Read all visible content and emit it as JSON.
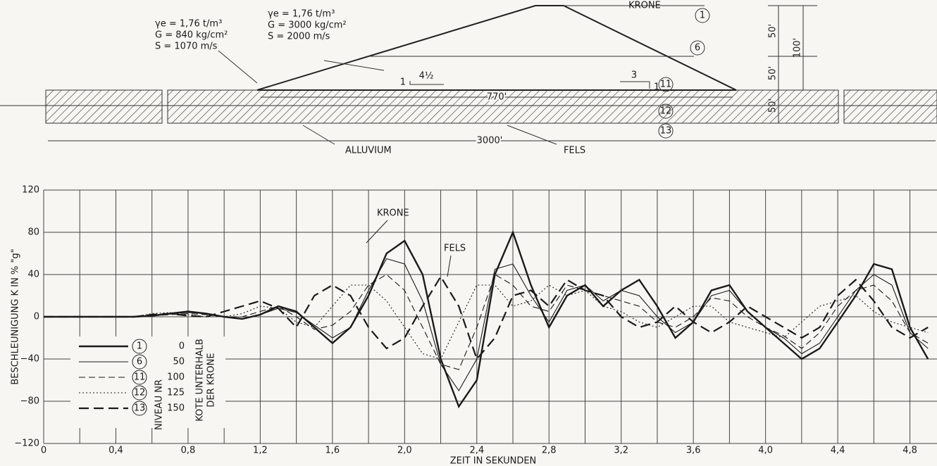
{
  "diagram": {
    "upper_left_props": [
      "γe = 1,76 t/m³",
      "G = 840 kg/cm²",
      "S = 1070 m/s"
    ],
    "upper_mid_props": [
      "γe = 1,76 t/m³",
      "G = 3000 kg/cm²",
      "S = 2000 m/s"
    ],
    "crest_label": "KRONE",
    "slope_left": [
      "1",
      "4½"
    ],
    "slope_right": [
      "3",
      "1"
    ],
    "level_markers": [
      "1",
      "6",
      "11",
      "12",
      "13"
    ],
    "dims": [
      "50'",
      "50'",
      "100'",
      "50'",
      "770'",
      "3000'"
    ],
    "layers": [
      "ALLUVIUM",
      "FELS"
    ]
  },
  "chart_data": {
    "type": "line",
    "ylabel": "BESCHLEUNIGUNG K IN % \"g\"",
    "xlabel": "ZEIT IN SEKUNDEN",
    "annotations": [
      "KRONE",
      "FELS"
    ],
    "legend_title": [
      "NIVEAU NR",
      "KOTE UNTERHALB",
      "DER KRONE"
    ],
    "xlim": [
      0,
      4.95
    ],
    "ylim": [
      -120,
      120
    ],
    "xticks": [
      {
        "value": 0,
        "label": "0"
      },
      {
        "value": 0.4,
        "label": "0,4"
      },
      {
        "value": 0.8,
        "label": "0,8"
      },
      {
        "value": 1.2,
        "label": "1,2"
      },
      {
        "value": 1.6,
        "label": "1,6"
      },
      {
        "value": 2.0,
        "label": "2,0"
      },
      {
        "value": 2.4,
        "label": "2,4"
      },
      {
        "value": 2.8,
        "label": "2,8"
      },
      {
        "value": 3.2,
        "label": "3,2"
      },
      {
        "value": 3.6,
        "label": "3,6"
      },
      {
        "value": 4.0,
        "label": "4,0"
      },
      {
        "value": 4.4,
        "label": "4,4"
      },
      {
        "value": 4.8,
        "label": "4,8"
      }
    ],
    "xgrid": [
      0.2,
      0.6,
      1.0,
      1.4,
      1.8,
      2.2,
      2.6,
      3.0,
      3.4,
      3.8,
      4.2,
      4.6
    ],
    "yticks": [
      {
        "value": -120,
        "label": "−120"
      },
      {
        "value": -80,
        "label": "−80"
      },
      {
        "value": -40,
        "label": "−40"
      },
      0,
      40,
      80,
      120
    ],
    "grid": true,
    "x": [
      0,
      0.1,
      0.2,
      0.3,
      0.4,
      0.5,
      0.6,
      0.7,
      0.8,
      0.9,
      1.0,
      1.1,
      1.2,
      1.3,
      1.4,
      1.5,
      1.6,
      1.7,
      1.8,
      1.9,
      2.0,
      2.1,
      2.2,
      2.3,
      2.4,
      2.5,
      2.6,
      2.7,
      2.8,
      2.9,
      3.0,
      3.1,
      3.2,
      3.3,
      3.4,
      3.5,
      3.6,
      3.7,
      3.8,
      3.9,
      4.0,
      4.1,
      4.2,
      4.3,
      4.4,
      4.5,
      4.6,
      4.7,
      4.8,
      4.9
    ],
    "series": [
      {
        "name": "1",
        "depth": "0",
        "color": "#1a1a1a",
        "width": 2.4,
        "dash": "solid",
        "values": [
          0,
          0,
          0,
          0,
          0,
          0,
          1,
          3,
          5,
          3,
          0,
          -2,
          2,
          10,
          5,
          -10,
          -25,
          -10,
          20,
          60,
          72,
          40,
          -40,
          -85,
          -60,
          40,
          80,
          30,
          -10,
          20,
          30,
          10,
          25,
          35,
          10,
          -20,
          -5,
          25,
          30,
          5,
          -10,
          -25,
          -40,
          -30,
          -5,
          20,
          50,
          45,
          -10,
          -40
        ]
      },
      {
        "name": "6",
        "depth": "50",
        "color": "#1a1a1a",
        "width": 1.1,
        "dash": "solid",
        "values": [
          0,
          0,
          0,
          0,
          0,
          0,
          1,
          3,
          4,
          3,
          0,
          -2,
          2,
          8,
          4,
          -8,
          -20,
          -10,
          25,
          55,
          50,
          15,
          -45,
          -70,
          -40,
          45,
          50,
          20,
          -5,
          25,
          30,
          15,
          25,
          20,
          0,
          -15,
          -5,
          20,
          25,
          5,
          -10,
          -20,
          -35,
          -25,
          0,
          25,
          40,
          30,
          -15,
          -30
        ]
      },
      {
        "name": "11",
        "depth": "100",
        "color": "#1a1a1a",
        "width": 1.1,
        "dash": "dashed",
        "values": [
          0,
          0,
          0,
          0,
          0,
          0,
          1,
          2,
          3,
          2,
          0,
          0,
          5,
          10,
          0,
          -12,
          -8,
          5,
          30,
          40,
          25,
          -10,
          -45,
          -50,
          -10,
          40,
          30,
          10,
          5,
          30,
          25,
          20,
          15,
          10,
          -5,
          -10,
          0,
          18,
          15,
          0,
          -10,
          -18,
          -30,
          -15,
          10,
          25,
          30,
          15,
          -15,
          -25
        ]
      },
      {
        "name": "12",
        "depth": "125",
        "color": "#1a1a1a",
        "width": 1.1,
        "dash": "dotted",
        "values": [
          0,
          0,
          0,
          0,
          0,
          0,
          3,
          4,
          2,
          0,
          0,
          3,
          10,
          8,
          -5,
          -10,
          10,
          30,
          30,
          15,
          -10,
          -35,
          -40,
          -5,
          30,
          30,
          10,
          15,
          30,
          20,
          25,
          10,
          5,
          -5,
          -10,
          0,
          10,
          10,
          -5,
          -10,
          -15,
          -20,
          -5,
          10,
          15,
          20,
          5,
          -5,
          -10,
          -15
        ]
      },
      {
        "name": "13",
        "depth": "150",
        "color": "#1a1a1a",
        "width": 2.2,
        "dash": "longdash",
        "values": [
          0,
          0,
          0,
          0,
          0,
          0,
          2,
          3,
          1,
          0,
          5,
          10,
          15,
          8,
          -10,
          20,
          30,
          20,
          -10,
          -30,
          -20,
          10,
          38,
          10,
          -40,
          -20,
          20,
          25,
          10,
          35,
          25,
          20,
          0,
          -10,
          -5,
          10,
          -5,
          -15,
          -5,
          10,
          0,
          -10,
          -20,
          -10,
          20,
          35,
          15,
          -10,
          -20,
          -10
        ]
      }
    ]
  }
}
